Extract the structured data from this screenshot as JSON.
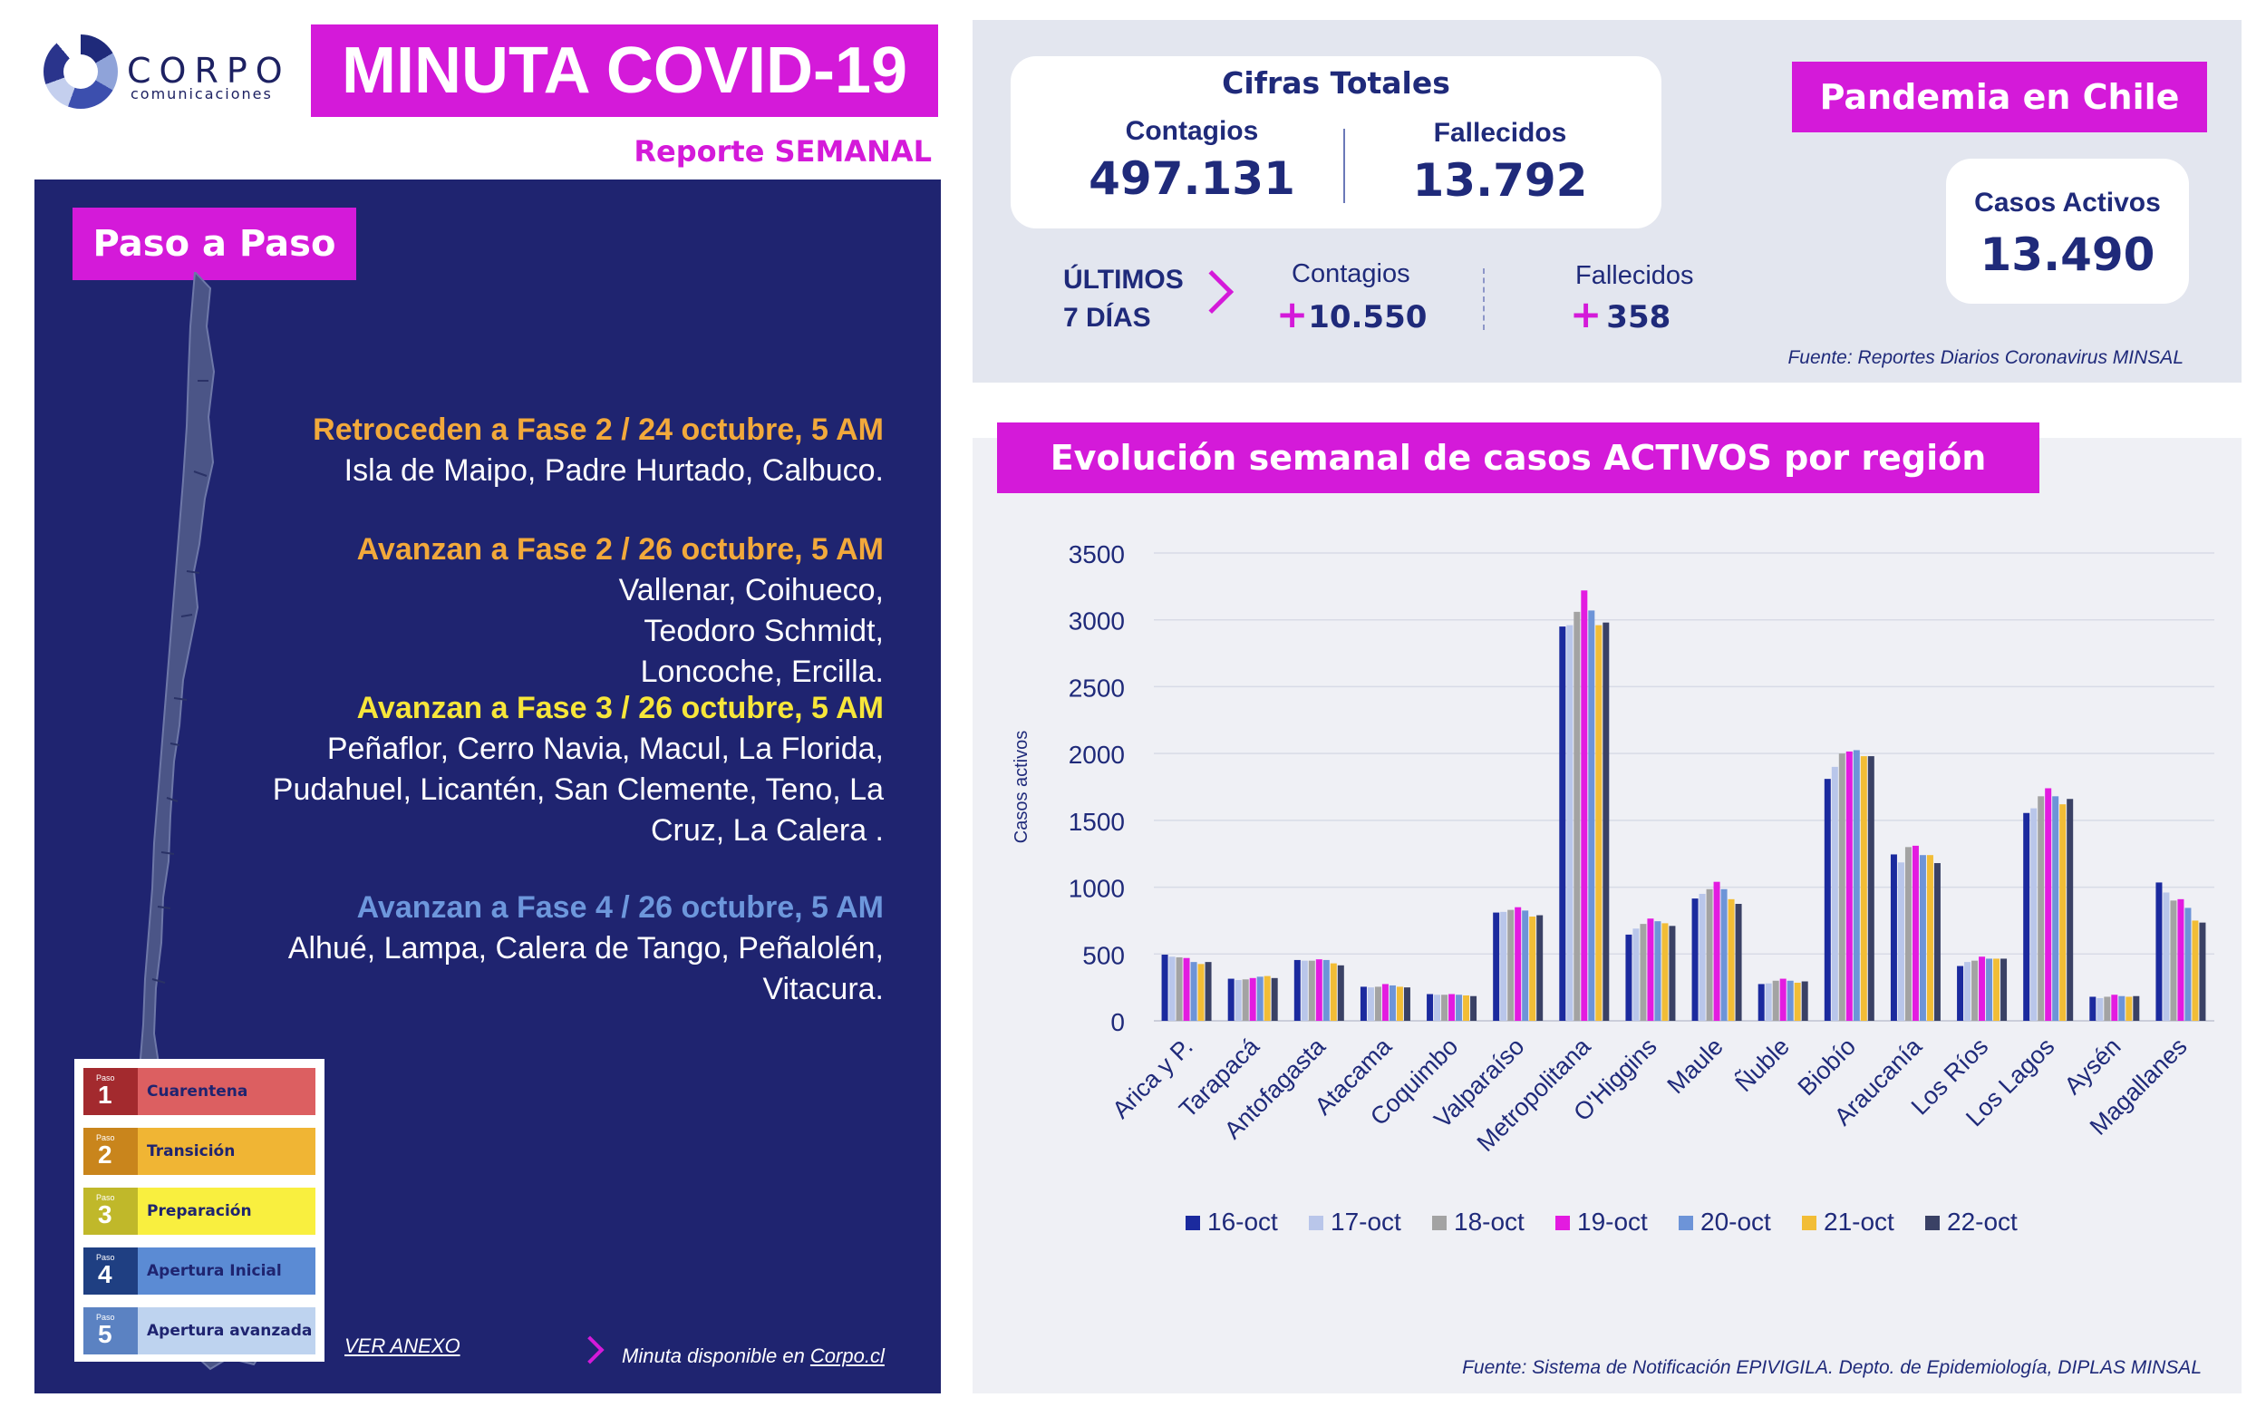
{
  "header": {
    "logo_name": "CORPO",
    "logo_sub": "comunicaciones",
    "title": "MINUTA COVID-19",
    "subtitle": "Reporte SEMANAL"
  },
  "left": {
    "section_title": "Paso a Paso",
    "phases": [
      {
        "heading": "Retroceden a Fase 2 / 24 octubre, 5 AM",
        "text": "Isla de Maipo, Padre Hurtado, Calbuco."
      },
      {
        "heading": "Avanzan a Fase 2 / 26 octubre, 5 AM",
        "text": "Vallenar, Coihueco, Teodoro Schmidt, Loncoche, Ercilla."
      },
      {
        "heading": "Avanzan a Fase 3 / 26 octubre, 5 AM",
        "text": "Peñaflor, Cerro Navia, Macul, La Florida, Pudahuel, Licantén, San Clemente, Teno, La Cruz, La Calera ."
      },
      {
        "heading": "Avanzan a Fase 4 / 26 octubre, 5 AM",
        "text": "Alhué, Lampa, Calera de Tango, Peñalolén, Vitacura."
      }
    ],
    "legend": [
      {
        "paso": "Paso",
        "num": "1",
        "label": "Cuarentena",
        "dark": "#a32a2e",
        "light": "#dc5f61"
      },
      {
        "paso": "Paso",
        "num": "2",
        "label": "Transición",
        "dark": "#c9851c",
        "light": "#f0b534"
      },
      {
        "paso": "Paso",
        "num": "3",
        "label": "Preparación",
        "dark": "#c0b82a",
        "light": "#f9ef3f"
      },
      {
        "paso": "Paso",
        "num": "4",
        "label": "Apertura Inicial",
        "dark": "#1f3f82",
        "light": "#5b8bd4"
      },
      {
        "paso": "Paso",
        "num": "5",
        "label": "Apertura avanzada",
        "dark": "#5b82c2",
        "light": "#bed3ef"
      }
    ],
    "ver_anexo": "VER ANEXO",
    "minuta_prefix": "Minuta disponible en ",
    "minuta_link": "Corpo.cl"
  },
  "stats": {
    "cifras_title": "Cifras Totales",
    "contagios_label": "Contagios",
    "contagios_value": "497.131",
    "fallecidos_label": "Fallecidos",
    "fallecidos_value": "13.792",
    "pandemia_title": "Pandemia en Chile",
    "activos_label": "Casos Activos",
    "activos_value": "13.490",
    "ultimos_line1": "ÚLTIMOS",
    "ultimos_line2": "7 DÍAS",
    "week_contagios_label": "Contagios",
    "week_contagios_value": "10.550",
    "week_fallecidos_label": "Fallecidos",
    "week_fallecidos_value": "358",
    "plus": "+",
    "fuente": "Fuente: Reportes Diarios Coronavirus MINSAL"
  },
  "chart_section": {
    "title": "Evolución semanal de casos ACTIVOS por región",
    "fuente": "Fuente: Sistema de Notificación EPIVIGILA. Depto. de Epidemiología, DIPLAS MINSAL"
  },
  "chart_data": {
    "type": "bar",
    "title": "Evolución semanal de casos ACTIVOS por región",
    "ylabel": "Casos activos",
    "xlabel": "",
    "ylim": [
      0,
      3500
    ],
    "yticks": [
      0,
      500,
      1000,
      1500,
      2000,
      2500,
      3000,
      3500
    ],
    "grid": true,
    "legend_position": "bottom",
    "categories": [
      "Arica y P.",
      "Tarapacá",
      "Antofagasta",
      "Atacama",
      "Coquimbo",
      "Valparaíso",
      "Metropolitana",
      "O'Higgins",
      "Maule",
      "Ñuble",
      "Biobío",
      "Araucanía",
      "Los Ríos",
      "Los Lagos",
      "Aysén",
      "Magallanes"
    ],
    "series": [
      {
        "name": "16-oct",
        "color": "#1b2a9e",
        "values": [
          495,
          315,
          455,
          255,
          200,
          810,
          2950,
          645,
          915,
          275,
          1810,
          1245,
          410,
          1555,
          180,
          1035
        ]
      },
      {
        "name": "17-oct",
        "color": "#b9c6ea",
        "values": [
          480,
          305,
          450,
          250,
          195,
          815,
          2960,
          690,
          950,
          280,
          1900,
          1185,
          440,
          1590,
          170,
          960
        ]
      },
      {
        "name": "18-oct",
        "color": "#a3a3a3",
        "values": [
          475,
          310,
          450,
          255,
          195,
          830,
          3060,
          725,
          985,
          300,
          2000,
          1300,
          450,
          1680,
          180,
          900
        ]
      },
      {
        "name": "19-oct",
        "color": "#e31be0",
        "values": [
          470,
          320,
          460,
          275,
          200,
          850,
          3220,
          765,
          1040,
          315,
          2015,
          1310,
          480,
          1740,
          195,
          910
        ]
      },
      {
        "name": "20-oct",
        "color": "#6d94d8",
        "values": [
          440,
          330,
          455,
          265,
          195,
          825,
          3070,
          745,
          985,
          300,
          2025,
          1240,
          465,
          1680,
          185,
          845
        ]
      },
      {
        "name": "21-oct",
        "color": "#f2bd36",
        "values": [
          425,
          335,
          430,
          255,
          190,
          780,
          2960,
          730,
          910,
          285,
          1980,
          1240,
          465,
          1620,
          180,
          750
        ]
      },
      {
        "name": "22-oct",
        "color": "#3a4165",
        "values": [
          440,
          320,
          415,
          250,
          185,
          790,
          2980,
          710,
          875,
          295,
          1980,
          1180,
          465,
          1660,
          185,
          735
        ]
      }
    ]
  }
}
